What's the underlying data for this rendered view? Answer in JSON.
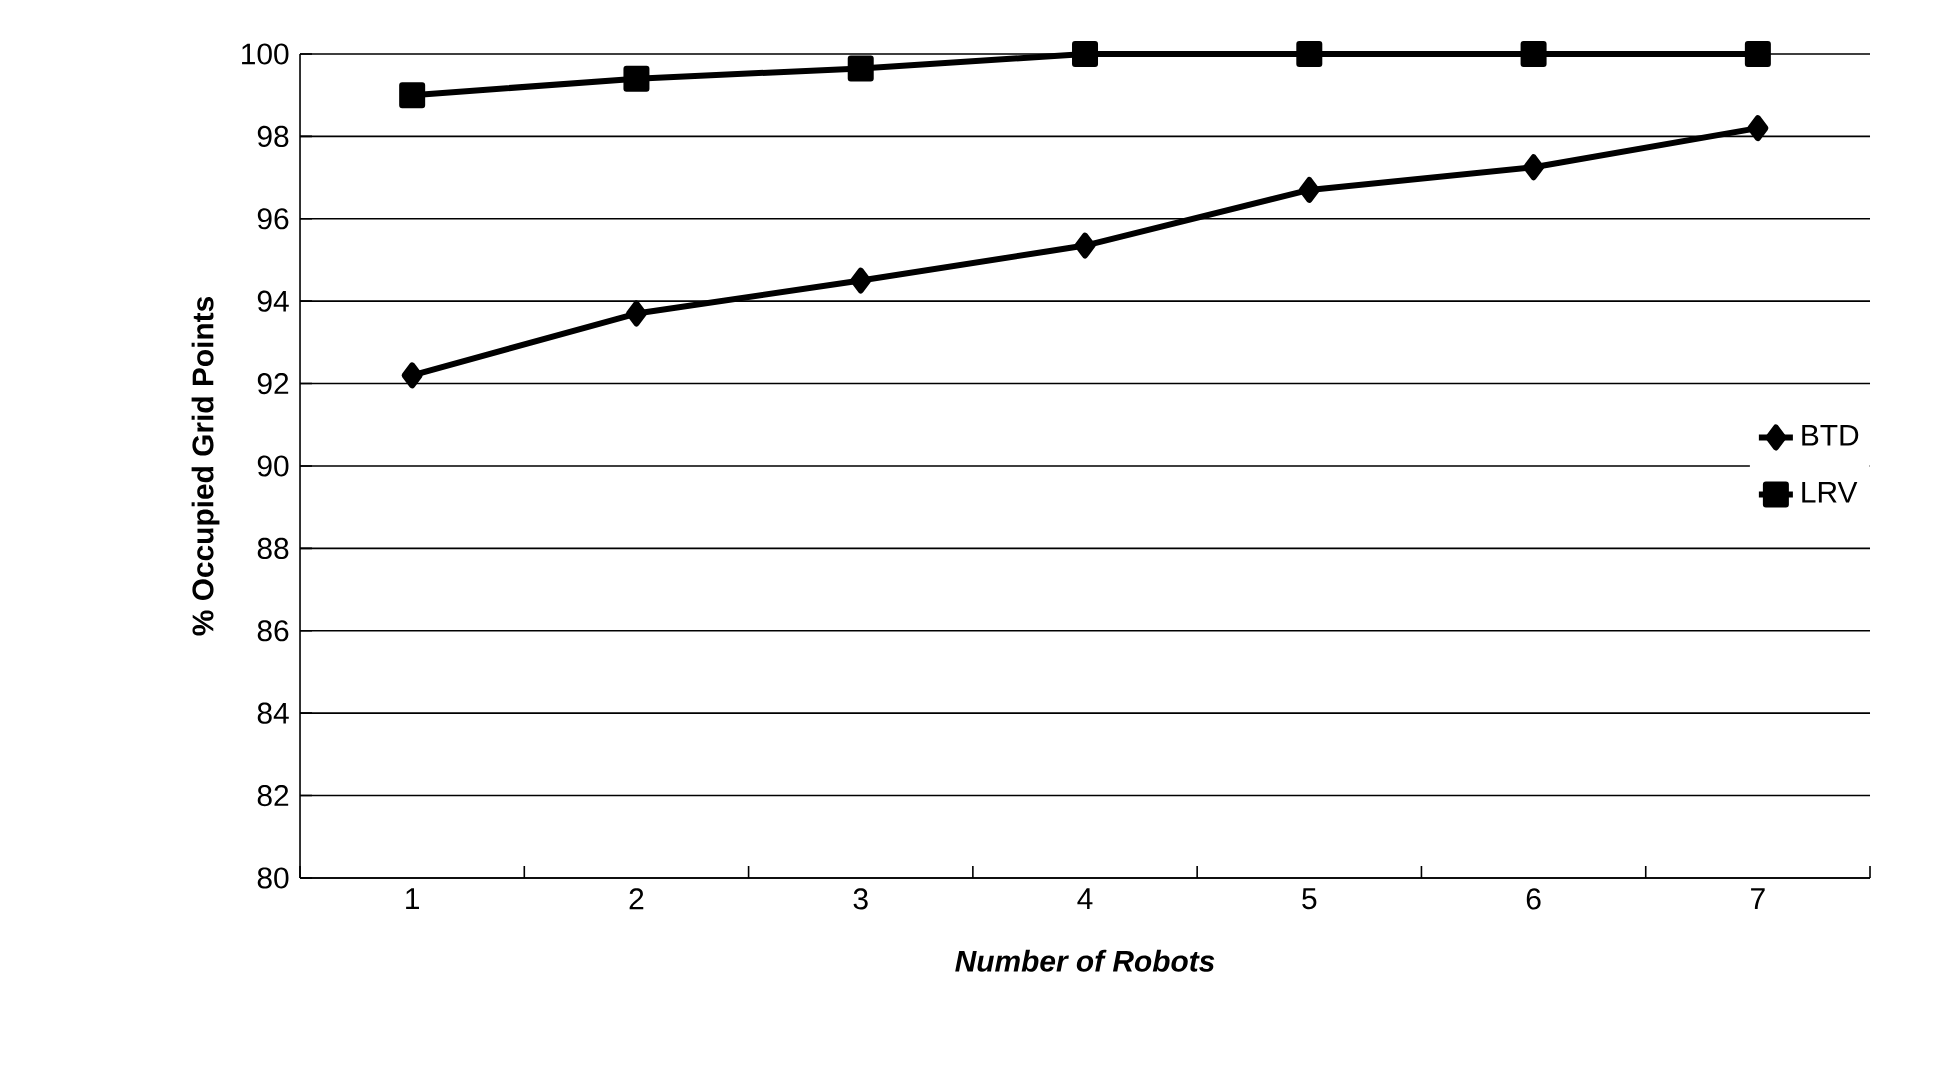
{
  "chart_data": {
    "type": "line",
    "xlabel": "Number of Robots",
    "ylabel": "% Occupied Grid Points",
    "categories": [
      "1",
      "2",
      "3",
      "4",
      "5",
      "6",
      "7"
    ],
    "series": [
      {
        "name": "BTD",
        "color": "#000000",
        "marker": "diamond",
        "values": [
          92.2,
          93.7,
          94.5,
          95.35,
          96.7,
          97.25,
          98.2
        ]
      },
      {
        "name": "LRV",
        "color": "#000000",
        "marker": "square",
        "values": [
          99.0,
          99.4,
          99.65,
          100,
          100,
          100,
          100
        ]
      }
    ],
    "ylim": [
      80,
      100
    ],
    "yticks": [
      80,
      82,
      84,
      86,
      88,
      90,
      92,
      94,
      96,
      98,
      100
    ],
    "grid": "y",
    "legend": "right",
    "line_style": "solid"
  }
}
